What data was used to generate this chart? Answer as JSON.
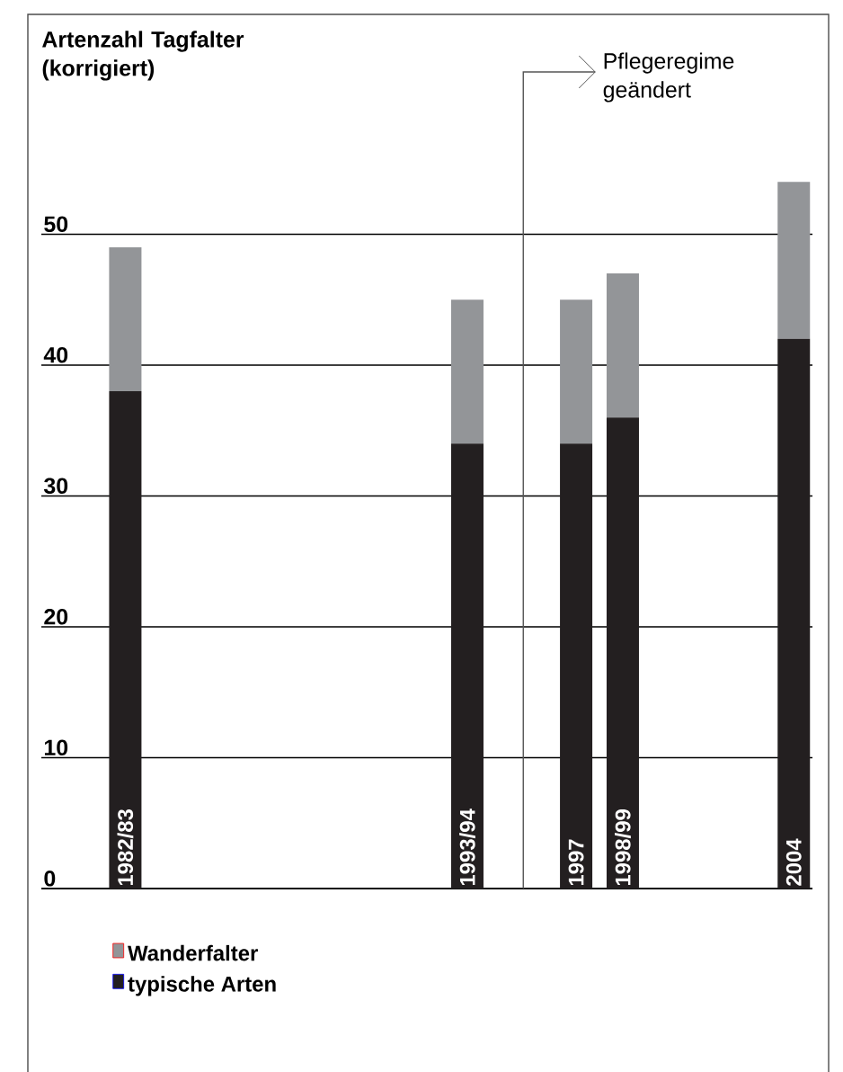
{
  "chart_data": {
    "type": "bar",
    "stacked": true,
    "title": "Artenzahl Tagfalter (korrigiert)",
    "x": [
      1982.5,
      1993.5,
      1997,
      1998.5,
      2004
    ],
    "xticks": [
      {
        "value": 1982.5,
        "label": "1982/83"
      },
      {
        "value": 1993.5,
        "label": "1993/94"
      },
      {
        "value": 1997,
        "label": "1997"
      },
      {
        "value": 1998.5,
        "label": "1998/99"
      },
      {
        "value": 2004,
        "label": "2004"
      }
    ],
    "xlim": [
      1979.8,
      2004.6
    ],
    "ylim": [
      0,
      62.4
    ],
    "yticks": [
      0,
      10,
      20,
      30,
      40,
      50
    ],
    "series": [
      {
        "name": "typische Arten",
        "color": "#231f20",
        "values": [
          38,
          34,
          34,
          36,
          42
        ]
      },
      {
        "name": "Wanderfalter",
        "color": "#939598",
        "values": [
          11,
          11,
          11,
          11,
          12
        ]
      }
    ],
    "grid": "y",
    "legend": "bottom",
    "ref_lines": [
      {
        "axis": "x",
        "value": 1995.3,
        "label": "Pflegeregime geändert",
        "color": "#555555"
      }
    ]
  }
}
